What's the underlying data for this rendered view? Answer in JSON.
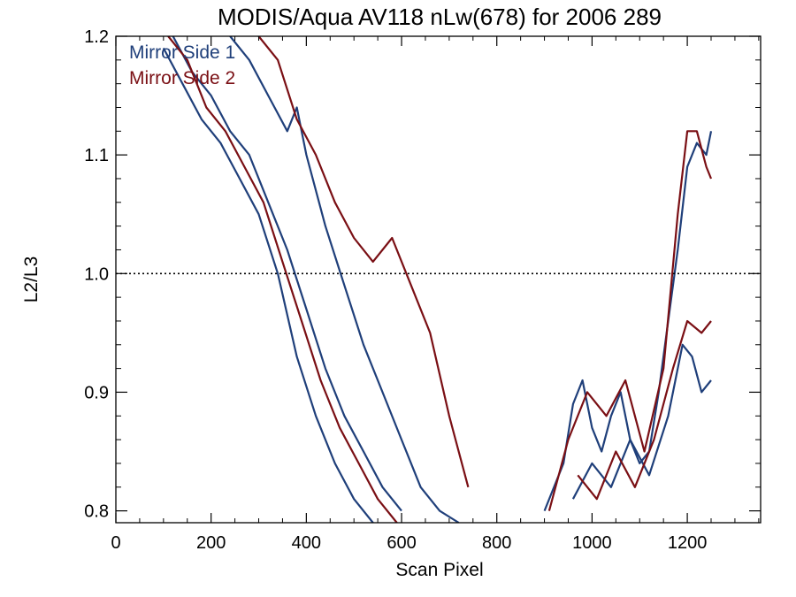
{
  "chart_data": {
    "type": "line",
    "title": "MODIS/Aqua AV118 nLw(678) for 2006 289",
    "xlabel": "Scan Pixel",
    "ylabel": "L2/L3",
    "xlim": [
      0,
      1354
    ],
    "ylim": [
      0.79,
      1.2
    ],
    "xticks": [
      0,
      200,
      400,
      600,
      800,
      1000,
      1200
    ],
    "yticks": [
      0.8,
      0.9,
      1.0,
      1.1,
      1.2
    ],
    "xtick_labels": [
      "0",
      "200",
      "400",
      "600",
      "800",
      "1000",
      "1200"
    ],
    "ytick_labels": [
      "0.8",
      "0.9",
      "1.0",
      "1.1",
      "1.2"
    ],
    "reference_line": {
      "y": 1.0,
      "style": "dotted"
    },
    "grid": false,
    "legend_position": "top-left",
    "colors": {
      "mirror_side_1": "#1f3f7a",
      "mirror_side_2": "#7a0f14"
    },
    "series": [
      {
        "name": "Mirror Side 1",
        "color": "#1f3f7a",
        "x": [
          100,
          140,
          180,
          220,
          260,
          300,
          340,
          380,
          420,
          460,
          500,
          540,
          580,
          620,
          660,
          700,
          740
        ],
        "y": [
          1.19,
          1.16,
          1.13,
          1.11,
          1.08,
          1.05,
          1.0,
          0.93,
          0.88,
          0.84,
          0.81,
          0.79,
          null,
          null,
          null,
          null,
          null
        ]
      },
      {
        "name": "Mirror Side 1",
        "color": "#1f3f7a",
        "x": [
          120,
          160,
          200,
          240,
          280,
          320,
          360,
          400,
          440,
          480,
          520,
          560,
          600,
          640,
          680,
          720
        ],
        "y": [
          1.2,
          1.17,
          1.15,
          1.12,
          1.1,
          1.06,
          1.02,
          0.97,
          0.92,
          0.88,
          0.85,
          0.82,
          0.8,
          null,
          null,
          null
        ]
      },
      {
        "name": "Mirror Side 1",
        "color": "#1f3f7a",
        "x": [
          240,
          280,
          320,
          360,
          380,
          400,
          440,
          480,
          520,
          560,
          600,
          640,
          680,
          720
        ],
        "y": [
          1.2,
          1.18,
          1.15,
          1.12,
          1.14,
          1.1,
          1.04,
          0.99,
          0.94,
          0.9,
          0.86,
          0.82,
          0.8,
          0.79
        ]
      },
      {
        "name": "Mirror Side 1",
        "color": "#1f3f7a",
        "x": [
          900,
          940,
          960,
          980,
          1000,
          1020,
          1040,
          1060,
          1080,
          1100,
          1120,
          1140,
          1160,
          1180,
          1200,
          1220,
          1240,
          1250
        ],
        "y": [
          0.8,
          0.84,
          0.89,
          0.91,
          0.87,
          0.85,
          0.88,
          0.9,
          0.86,
          0.84,
          0.85,
          0.9,
          0.96,
          1.02,
          1.09,
          1.11,
          1.1,
          1.12
        ]
      },
      {
        "name": "Mirror Side 1",
        "color": "#1f3f7a",
        "x": [
          960,
          1000,
          1040,
          1080,
          1120,
          1160,
          1190,
          1210,
          1230,
          1250
        ],
        "y": [
          0.81,
          0.84,
          0.82,
          0.86,
          0.83,
          0.88,
          0.94,
          0.93,
          0.9,
          0.91
        ]
      },
      {
        "name": "Mirror Side 2",
        "color": "#7a0f14",
        "x": [
          110,
          150,
          190,
          230,
          270,
          310,
          350,
          390,
          430,
          470,
          510,
          550,
          590,
          630,
          670,
          710
        ],
        "y": [
          1.2,
          1.18,
          1.14,
          1.12,
          1.09,
          1.06,
          1.01,
          0.96,
          0.91,
          0.87,
          0.84,
          0.81,
          0.79,
          null,
          null,
          null
        ]
      },
      {
        "name": "Mirror Side 2",
        "color": "#7a0f14",
        "x": [
          300,
          340,
          380,
          420,
          460,
          500,
          540,
          580,
          620,
          660,
          700,
          740
        ],
        "y": [
          1.2,
          1.18,
          1.13,
          1.1,
          1.06,
          1.03,
          1.01,
          1.03,
          0.99,
          0.95,
          0.88,
          0.82
        ]
      },
      {
        "name": "Mirror Side 2",
        "color": "#7a0f14",
        "x": [
          910,
          950,
          990,
          1030,
          1070,
          1110,
          1150,
          1180,
          1200,
          1220,
          1240,
          1250
        ],
        "y": [
          0.8,
          0.86,
          0.9,
          0.88,
          0.91,
          0.85,
          0.92,
          1.05,
          1.12,
          1.12,
          1.09,
          1.08
        ]
      },
      {
        "name": "Mirror Side 2",
        "color": "#7a0f14",
        "x": [
          970,
          1010,
          1050,
          1090,
          1130,
          1170,
          1200,
          1230,
          1250
        ],
        "y": [
          0.83,
          0.81,
          0.85,
          0.82,
          0.86,
          0.92,
          0.96,
          0.95,
          0.96
        ]
      }
    ],
    "legend": [
      {
        "label": "Mirror Side 1",
        "color": "#1f3f7a"
      },
      {
        "label": "Mirror Side 2",
        "color": "#7a0f14"
      }
    ]
  }
}
